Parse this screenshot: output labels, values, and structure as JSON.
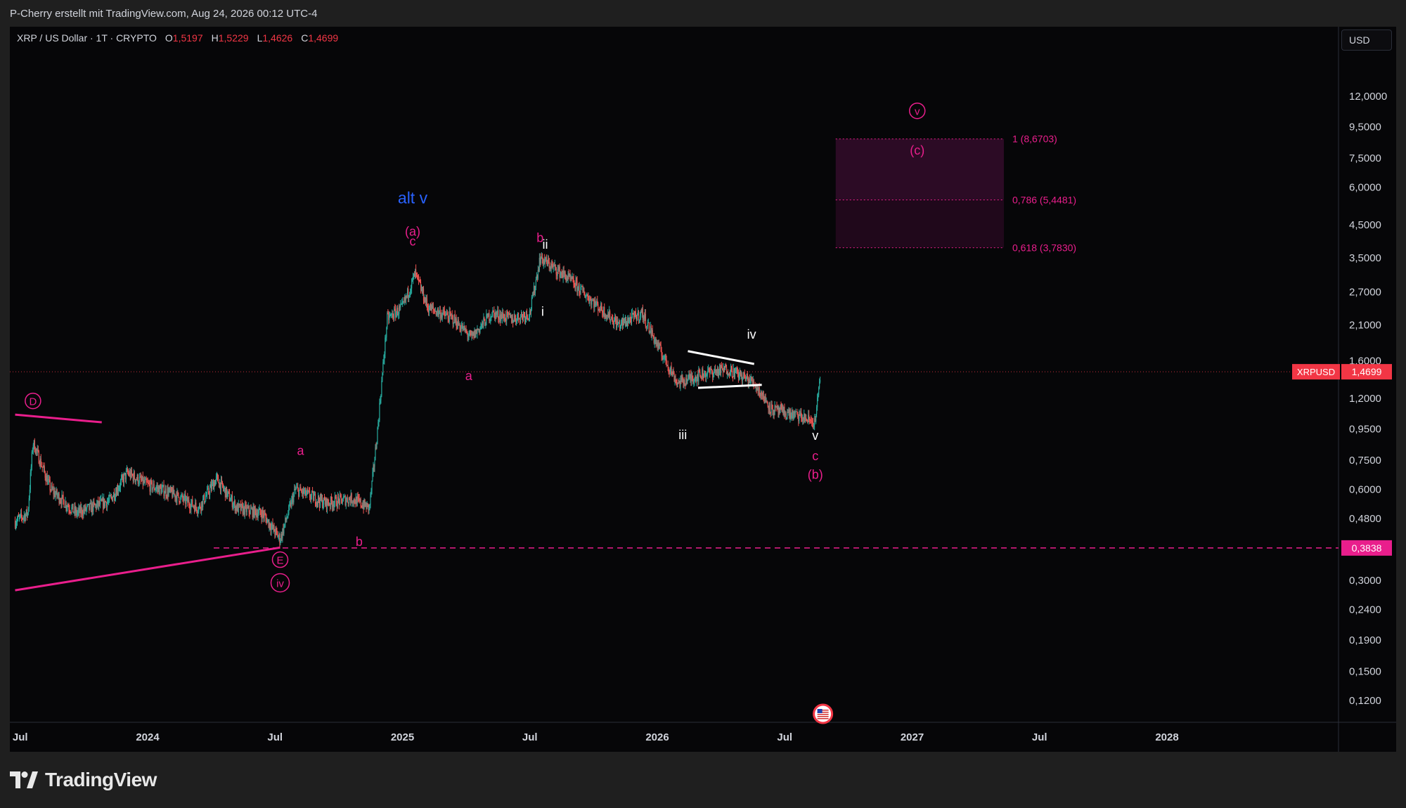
{
  "header": {
    "title": "P-Cherry erstellt mit TradingView.com, Aug 24, 2026 00:12 UTC-4"
  },
  "legend": {
    "symbol": "XRP / US Dollar · 1T · CRYPTO",
    "o_key": "O",
    "o_val": "1,5197",
    "h_key": "H",
    "h_val": "1,5229",
    "l_key": "L",
    "l_val": "1,4626",
    "c_key": "C",
    "c_val": "1,4699"
  },
  "currency": "USD",
  "brand": {
    "name": "TradingView"
  },
  "colors": {
    "bull": "#26a69a",
    "bear": "#ef5350",
    "magenta": "#e91e8c",
    "price_tag": "#f23645",
    "alt_blue": "#2962ff",
    "white": "#ffffff"
  },
  "chart_data": {
    "type": "candlestick",
    "scale": "log",
    "ylim": [
      0.1,
      16
    ],
    "y_ticks": [
      {
        "v": 12,
        "label": "12,0000"
      },
      {
        "v": 9.5,
        "label": "9,5000"
      },
      {
        "v": 7.5,
        "label": "7,5000"
      },
      {
        "v": 6.0,
        "label": "6,0000"
      },
      {
        "v": 4.5,
        "label": "4,5000"
      },
      {
        "v": 3.5,
        "label": "3,5000"
      },
      {
        "v": 2.7,
        "label": "2,7000"
      },
      {
        "v": 2.1,
        "label": "2,1000"
      },
      {
        "v": 1.6,
        "label": "1,6000"
      },
      {
        "v": 1.2,
        "label": "1,2000"
      },
      {
        "v": 0.95,
        "label": "0,9500"
      },
      {
        "v": 0.75,
        "label": "0,7500"
      },
      {
        "v": 0.6,
        "label": "0,6000"
      },
      {
        "v": 0.48,
        "label": "0,4800"
      },
      {
        "v": 0.3,
        "label": "0,3000"
      },
      {
        "v": 0.24,
        "label": "0,2400"
      },
      {
        "v": 0.19,
        "label": "0,1900"
      },
      {
        "v": 0.15,
        "label": "0,1500"
      },
      {
        "v": 0.12,
        "label": "0,1200"
      }
    ],
    "x_ticks": [
      {
        "t": 2023.5,
        "label": "Jul"
      },
      {
        "t": 2024.0,
        "label": "2024"
      },
      {
        "t": 2024.5,
        "label": "Jul"
      },
      {
        "t": 2025.0,
        "label": "2025"
      },
      {
        "t": 2025.5,
        "label": "Jul"
      },
      {
        "t": 2026.0,
        "label": "2026"
      },
      {
        "t": 2026.5,
        "label": "Jul"
      },
      {
        "t": 2027.0,
        "label": "2027"
      },
      {
        "t": 2027.5,
        "label": "Jul"
      },
      {
        "t": 2028.0,
        "label": "2028"
      }
    ],
    "xlim": [
      2023.48,
      2028.72
    ],
    "price_path": [
      [
        2023.48,
        0.47
      ],
      [
        2023.53,
        0.5
      ],
      [
        2023.55,
        0.86
      ],
      [
        2023.62,
        0.6
      ],
      [
        2023.72,
        0.5
      ],
      [
        2023.85,
        0.55
      ],
      [
        2023.92,
        0.68
      ],
      [
        2024.0,
        0.62
      ],
      [
        2024.1,
        0.58
      ],
      [
        2024.2,
        0.52
      ],
      [
        2024.27,
        0.65
      ],
      [
        2024.35,
        0.52
      ],
      [
        2024.45,
        0.5
      ],
      [
        2024.52,
        0.41
      ],
      [
        2024.58,
        0.6
      ],
      [
        2024.7,
        0.54
      ],
      [
        2024.8,
        0.56
      ],
      [
        2024.87,
        0.52
      ],
      [
        2024.9,
        0.9
      ],
      [
        2024.94,
        2.2
      ],
      [
        2025.0,
        2.4
      ],
      [
        2025.05,
        3.1
      ],
      [
        2025.1,
        2.4
      ],
      [
        2025.2,
        2.2
      ],
      [
        2025.27,
        1.9
      ],
      [
        2025.35,
        2.3
      ],
      [
        2025.43,
        2.2
      ],
      [
        2025.5,
        2.3
      ],
      [
        2025.54,
        3.5
      ],
      [
        2025.65,
        3.0
      ],
      [
        2025.75,
        2.5
      ],
      [
        2025.85,
        2.1
      ],
      [
        2025.94,
        2.3
      ],
      [
        2026.0,
        1.8
      ],
      [
        2026.08,
        1.35
      ],
      [
        2026.18,
        1.45
      ],
      [
        2026.28,
        1.5
      ],
      [
        2026.38,
        1.35
      ],
      [
        2026.45,
        1.1
      ],
      [
        2026.55,
        1.05
      ],
      [
        2026.62,
        1.0
      ],
      [
        2026.64,
        1.47
      ]
    ],
    "last_price": {
      "value": 1.4699,
      "symbol": "XRPUSD",
      "label": "1,4699"
    },
    "support_level": {
      "value": 0.3838,
      "label": "0,3838"
    },
    "fib_levels": [
      {
        "value": 8.6703,
        "label": "1 (8,6703)"
      },
      {
        "value": 5.4481,
        "label": "0,786 (5,4481)"
      },
      {
        "value": 3.783,
        "label": "0,618 (3,7830)"
      }
    ],
    "fib_range": [
      2026.7,
      2027.36
    ],
    "trendlines": [
      {
        "from": [
          2023.48,
          0.278
        ],
        "to": [
          2024.52,
          0.385
        ],
        "color": "magenta"
      },
      {
        "from": [
          2023.48,
          1.06
        ],
        "to": [
          2023.82,
          1.0
        ],
        "color": "magenta"
      },
      {
        "from": [
          2026.12,
          1.72
        ],
        "to": [
          2026.38,
          1.56
        ],
        "color": "white"
      },
      {
        "from": [
          2026.16,
          1.3
        ],
        "to": [
          2026.41,
          1.33
        ],
        "color": "white"
      }
    ],
    "wave_labels": [
      {
        "t": 2023.55,
        "p": 1.14,
        "text": "D",
        "color": "magenta",
        "circle": true
      },
      {
        "t": 2024.52,
        "p": 0.34,
        "text": "E",
        "color": "magenta",
        "circle": true
      },
      {
        "t": 2024.52,
        "p": 0.285,
        "text": "iv",
        "color": "magenta",
        "circle": true
      },
      {
        "t": 2024.6,
        "p": 0.78,
        "text": "a",
        "color": "magenta"
      },
      {
        "t": 2024.83,
        "p": 0.39,
        "text": "b",
        "color": "magenta"
      },
      {
        "t": 2025.04,
        "p": 5.3,
        "text": "alt v",
        "color": "blue"
      },
      {
        "t": 2025.04,
        "p": 4.15,
        "text": "(a)",
        "color": "magenta"
      },
      {
        "t": 2025.04,
        "p": 3.85,
        "text": "c",
        "color": "magenta"
      },
      {
        "t": 2025.26,
        "p": 1.38,
        "text": "a",
        "color": "magenta"
      },
      {
        "t": 2025.54,
        "p": 3.95,
        "text": "b",
        "color": "magenta"
      },
      {
        "t": 2025.56,
        "p": 3.75,
        "text": "ii",
        "color": "white"
      },
      {
        "t": 2025.55,
        "p": 2.25,
        "text": "i",
        "color": "white"
      },
      {
        "t": 2026.1,
        "p": 0.88,
        "text": "iii",
        "color": "white"
      },
      {
        "t": 2026.37,
        "p": 1.89,
        "text": "iv",
        "color": "white"
      },
      {
        "t": 2026.62,
        "p": 0.875,
        "text": "v",
        "color": "white"
      },
      {
        "t": 2026.62,
        "p": 0.75,
        "text": "c",
        "color": "magenta"
      },
      {
        "t": 2026.62,
        "p": 0.65,
        "text": "(b)",
        "color": "magenta"
      },
      {
        "t": 2027.02,
        "p": 10.4,
        "text": "v",
        "color": "magenta",
        "circle": true
      },
      {
        "t": 2027.02,
        "p": 7.7,
        "text": "(c)",
        "color": "magenta"
      }
    ],
    "event_marker": {
      "t": 2026.65,
      "kind": "us-flag"
    }
  }
}
